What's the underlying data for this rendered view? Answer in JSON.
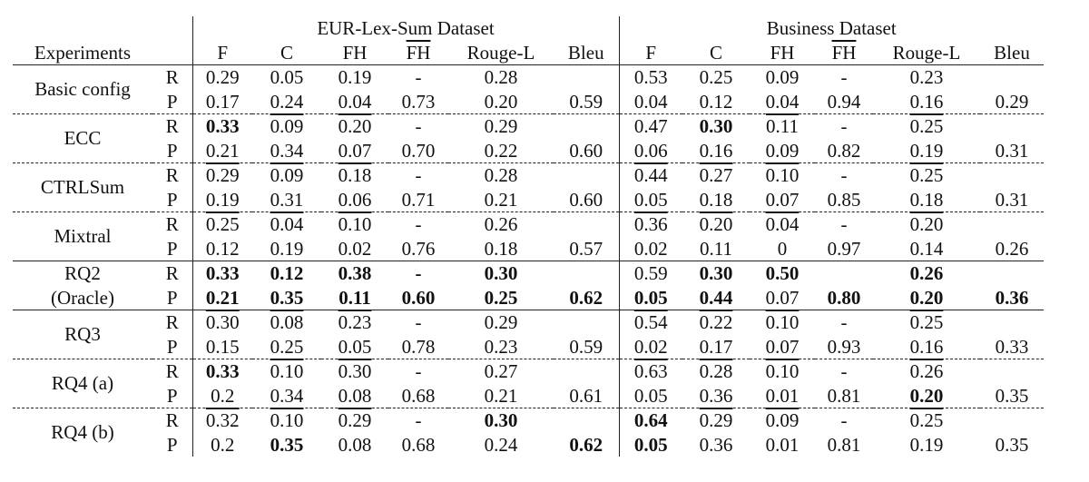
{
  "table": {
    "experiments_label": "Experiments",
    "groups": [
      "EUR-Lex-Sum Dataset",
      "Business Dataset"
    ],
    "metrics": [
      "F",
      "C",
      "FH",
      "FH",
      "Rouge-L",
      "Bleu"
    ],
    "rows": [
      {
        "name": "Basic config",
        "R": {
          "eur": [
            "0.29",
            "0.05",
            "0.19",
            "-",
            "0.28",
            ""
          ],
          "biz": [
            "0.53",
            "0.25",
            "0.09",
            "-",
            "0.23",
            ""
          ]
        },
        "P": {
          "eur": [
            "0.17",
            "0.24",
            "0.04",
            "0.73",
            "0.20",
            "0.59"
          ],
          "biz": [
            "0.04",
            "0.12",
            "0.04",
            "0.94",
            "0.16",
            "0.29"
          ]
        }
      },
      {
        "name": "ECC",
        "R": {
          "eur": [
            "0.33",
            "0.09",
            "0.20",
            "-",
            "0.29",
            ""
          ],
          "biz": [
            "0.47",
            "0.30",
            "0.11",
            "-",
            "0.25",
            ""
          ]
        },
        "P": {
          "eur": [
            "0.21",
            "0.34",
            "0.07",
            "0.70",
            "0.22",
            "0.60"
          ],
          "biz": [
            "0.06",
            "0.16",
            "0.09",
            "0.82",
            "0.19",
            "0.31"
          ]
        }
      },
      {
        "name": "CTRLSum",
        "R": {
          "eur": [
            "0.29",
            "0.09",
            "0.18",
            "-",
            "0.28",
            ""
          ],
          "biz": [
            "0.44",
            "0.27",
            "0.10",
            "-",
            "0.25",
            ""
          ]
        },
        "P": {
          "eur": [
            "0.19",
            "0.31",
            "0.06",
            "0.71",
            "0.21",
            "0.60"
          ],
          "biz": [
            "0.05",
            "0.18",
            "0.07",
            "0.85",
            "0.18",
            "0.31"
          ]
        }
      },
      {
        "name": "Mixtral",
        "R": {
          "eur": [
            "0.25",
            "0.04",
            "0.10",
            "-",
            "0.26",
            ""
          ],
          "biz": [
            "0.36",
            "0.20",
            "0.04",
            "-",
            "0.20",
            ""
          ]
        },
        "P": {
          "eur": [
            "0.12",
            "0.19",
            "0.02",
            "0.76",
            "0.18",
            "0.57"
          ],
          "biz": [
            "0.02",
            "0.11",
            "0",
            "0.97",
            "0.14",
            "0.26"
          ]
        }
      },
      {
        "name": "RQ2",
        "name2": "(Oracle)",
        "R": {
          "eur": [
            "0.33",
            "0.12",
            "0.38",
            "-",
            "0.30",
            ""
          ],
          "biz": [
            "0.59",
            "0.30",
            "0.50",
            "",
            "0.26",
            ""
          ]
        },
        "P": {
          "eur": [
            "0.21",
            "0.35",
            "0.11",
            "0.60",
            "0.25",
            "0.62"
          ],
          "biz": [
            "0.05",
            "0.44",
            "0.07",
            "0.80",
            "0.20",
            "0.36"
          ]
        }
      },
      {
        "name": "RQ3",
        "R": {
          "eur": [
            "0.30",
            "0.08",
            "0.23",
            "-",
            "0.29",
            ""
          ],
          "biz": [
            "0.54",
            "0.22",
            "0.10",
            "-",
            "0.25",
            ""
          ]
        },
        "P": {
          "eur": [
            "0.15",
            "0.25",
            "0.05",
            "0.78",
            "0.23",
            "0.59"
          ],
          "biz": [
            "0.02",
            "0.17",
            "0.07",
            "0.93",
            "0.16",
            "0.33"
          ]
        }
      },
      {
        "name": "RQ4 (a)",
        "R": {
          "eur": [
            "0.33",
            "0.10",
            "0.30",
            "-",
            "0.27",
            ""
          ],
          "biz": [
            "0.63",
            "0.28",
            "0.10",
            "-",
            "0.26",
            ""
          ]
        },
        "P": {
          "eur": [
            "0.2",
            "0.34",
            "0.08",
            "0.68",
            "0.21",
            "0.61"
          ],
          "biz": [
            "0.05",
            "0.36",
            "0.01",
            "0.81",
            "0.20",
            "0.35"
          ]
        }
      },
      {
        "name": "RQ4 (b)",
        "R": {
          "eur": [
            "0.32",
            "0.10",
            "0.29",
            "-",
            "0.30",
            ""
          ],
          "biz": [
            "0.64",
            "0.29",
            "0.09",
            "-",
            "0.25",
            ""
          ]
        },
        "P": {
          "eur": [
            "0.2",
            "0.35",
            "0.08",
            "0.68",
            "0.24",
            "0.62"
          ],
          "biz": [
            "0.05",
            "0.36",
            "0.01",
            "0.81",
            "0.19",
            "0.35"
          ]
        }
      }
    ]
  }
}
